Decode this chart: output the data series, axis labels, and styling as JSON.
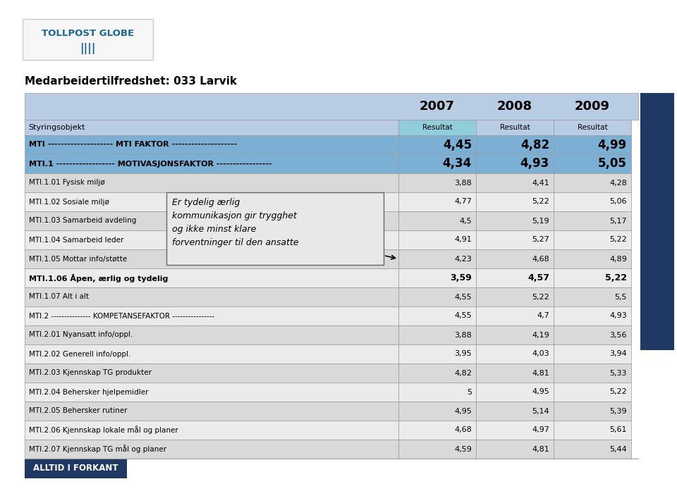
{
  "title": "Medarbeidertilfredshet: 033 Larvik",
  "years": [
    "2007",
    "2008",
    "2009"
  ],
  "rows": [
    {
      "label": "MTI -------------------- MTI FAKTOR --------------------",
      "values": [
        "4,45",
        "4,82",
        "4,99"
      ],
      "style": "bold_blue"
    },
    {
      "label": "MTI.1 ------------------ MOTIVASJONSFAKTOR -----------------",
      "values": [
        "4,34",
        "4,93",
        "5,05"
      ],
      "style": "bold_blue"
    },
    {
      "label": "MTI.1.01 Fysisk miljø",
      "values": [
        "3,88",
        "4,41",
        "4,28"
      ],
      "style": "normal"
    },
    {
      "label": "MTI.1.02 Sosiale miljø",
      "values": [
        "4,77",
        "5,22",
        "5,06"
      ],
      "style": "normal"
    },
    {
      "label": "MTI.1.03 Samarbeid avdeling",
      "values": [
        "4,5",
        "5,19",
        "5,17"
      ],
      "style": "normal"
    },
    {
      "label": "MTI.1.04 Samarbeid leder",
      "values": [
        "4,91",
        "5,27",
        "5,22"
      ],
      "style": "normal"
    },
    {
      "label": "MTI.1.05 Mottar info/støtte",
      "values": [
        "4,23",
        "4,68",
        "4,89"
      ],
      "style": "normal"
    },
    {
      "label": "MTI.1.06 Åpen, ærlig og tydelig",
      "values": [
        "3,59",
        "4,57",
        "5,22"
      ],
      "style": "bold_normal"
    },
    {
      "label": "MTI.1.07 Alt i alt",
      "values": [
        "4,55",
        "5,22",
        "5,5"
      ],
      "style": "normal"
    },
    {
      "label": "MTI.2 --------------- KOMPETANSEFAKTOR ----------------",
      "values": [
        "4,55",
        "4,7",
        "4,93"
      ],
      "style": "normal"
    },
    {
      "label": "MTI.2.01 Nyansatt info/oppl.",
      "values": [
        "3,88",
        "4,19",
        "3,56"
      ],
      "style": "normal"
    },
    {
      "label": "MTI.2.02 Generell info/oppl.",
      "values": [
        "3,95",
        "4,03",
        "3,94"
      ],
      "style": "normal"
    },
    {
      "label": "MTI.2.03 Kjennskap TG produkter",
      "values": [
        "4,82",
        "4,81",
        "5,33"
      ],
      "style": "normal"
    },
    {
      "label": "MTI.2.04 Behersker hjelpemidler",
      "values": [
        "5",
        "4,95",
        "5,22"
      ],
      "style": "normal"
    },
    {
      "label": "MTI.2.05 Behersker rutiner",
      "values": [
        "4,95",
        "5,14",
        "5,39"
      ],
      "style": "normal"
    },
    {
      "label": "MTI.2.06 Kjennskap lokale mål og planer",
      "values": [
        "4,68",
        "4,97",
        "5,61"
      ],
      "style": "normal"
    },
    {
      "label": "MTI.2.07 Kjennskap TG mål og planer",
      "values": [
        "4,59",
        "4,81",
        "5,44"
      ],
      "style": "normal"
    }
  ],
  "header_row_label": "Styringsobjekt",
  "bg_color": "#ffffff",
  "table_header_bg": "#b8cce4",
  "row_alt1": "#d9d9d9",
  "row_alt2": "#ebebeb",
  "bold_blue_bg": "#7bafd4",
  "border_color": "#999999",
  "popup_text": "Er tydelig ærlig\nkommunikasjon gir trygghet\nog ikke minst klare\nforventninger til den ansatte",
  "footer_text": "ALLTID I FORKANT",
  "footer_bg": "#1f3864",
  "footer_text_color": "#ffffff",
  "sidebar_color": "#1f3864",
  "col_2007_bg": "#92cddc"
}
